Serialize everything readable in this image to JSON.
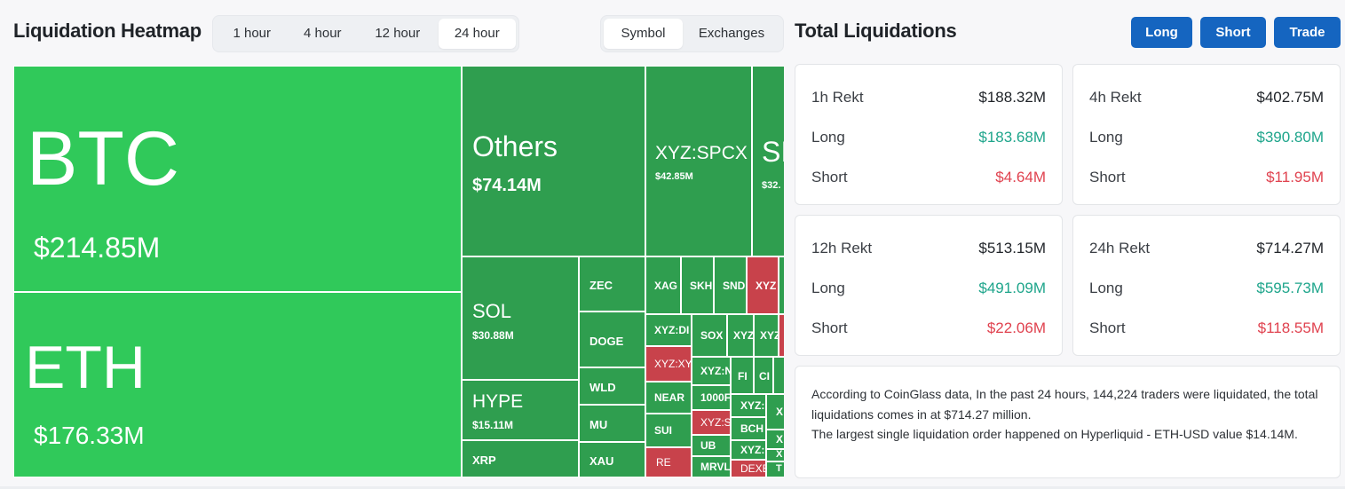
{
  "header": {
    "heatmap_title": "Liquidation Heatmap",
    "time_tabs": [
      "1 hour",
      "4 hour",
      "12 hour",
      "24 hour"
    ],
    "active_time_tab": "24 hour",
    "view_tabs": [
      "Symbol",
      "Exchanges"
    ],
    "active_view_tab": "Symbol",
    "total_title": "Total Liquidations",
    "buttons": {
      "long": "Long",
      "short": "Short",
      "trade": "Trade"
    }
  },
  "heatmap": {
    "tiles": {
      "btc": {
        "symbol": "BTC",
        "value": "$214.85M"
      },
      "eth": {
        "symbol": "ETH",
        "value": "$176.33M"
      },
      "others": {
        "symbol": "Others",
        "value": "$74.14M"
      },
      "spcx": {
        "symbol": "XYZ:SPCX",
        "value": "$42.85M"
      },
      "sl": {
        "symbol": "SI",
        "value": "$32."
      },
      "sol": {
        "symbol": "SOL",
        "value": "$30.88M"
      },
      "hype": {
        "symbol": "HYPE",
        "value": "$15.11M"
      },
      "xrp": {
        "symbol": "XRP"
      },
      "zec": {
        "symbol": "ZEC"
      },
      "doge": {
        "symbol": "DOGE"
      },
      "wld": {
        "symbol": "WLD"
      },
      "mu": {
        "symbol": "MU"
      },
      "xau": {
        "symbol": "XAU"
      },
      "xag": {
        "symbol": "XAG"
      },
      "skh": {
        "symbol": "SKH"
      },
      "snd": {
        "symbol": "SND"
      },
      "xyz1": {
        "symbol": "XYZ"
      },
      "xyzdi": {
        "symbol": "XYZ:DI"
      },
      "sox": {
        "symbol": "SOX"
      },
      "xyz2": {
        "symbol": "XYZ"
      },
      "xyz3": {
        "symbol": "XYZ"
      },
      "xyzxy": {
        "symbol": "XYZ:XY"
      },
      "xyzn": {
        "symbol": "XYZ:N"
      },
      "fi": {
        "symbol": "FI"
      },
      "ci": {
        "symbol": "CI"
      },
      "near": {
        "symbol": "NEAR"
      },
      "k1000": {
        "symbol": "1000F"
      },
      "xyzs": {
        "symbol": "XYZ:S"
      },
      "xyzc": {
        "symbol": "XYZ:"
      },
      "bch": {
        "symbol": "BCH"
      },
      "xa": {
        "symbol": "X"
      },
      "xb": {
        "symbol": "X"
      },
      "sui": {
        "symbol": "SUI"
      },
      "ub": {
        "symbol": "UB"
      },
      "xyzd": {
        "symbol": "XYZ:"
      },
      "xc": {
        "symbol": "X"
      },
      "re": {
        "symbol": "RE"
      },
      "mrvl": {
        "symbol": "MRVL"
      },
      "dexe": {
        "symbol": "DEXE"
      },
      "t": {
        "symbol": "T"
      }
    }
  },
  "stats": {
    "1h": {
      "label": "1h Rekt",
      "total": "$188.32M",
      "long_label": "Long",
      "long": "$183.68M",
      "short_label": "Short",
      "short": "$4.64M"
    },
    "4h": {
      "label": "4h Rekt",
      "total": "$402.75M",
      "long_label": "Long",
      "long": "$390.80M",
      "short_label": "Short",
      "short": "$11.95M"
    },
    "12h": {
      "label": "12h Rekt",
      "total": "$513.15M",
      "long_label": "Long",
      "long": "$491.09M",
      "short_label": "Short",
      "short": "$22.06M"
    },
    "24h": {
      "label": "24h Rekt",
      "total": "$714.27M",
      "long_label": "Long",
      "long": "$595.73M",
      "short_label": "Short",
      "short": "$118.55M"
    }
  },
  "summary": {
    "line1": "According to CoinGlass data, In the past 24 hours, 144,224 traders were liquidated, the total liquidations comes in at $714.27 million.",
    "line2": "The largest single liquidation order happened on Hyperliquid - ETH-USD value $14.14M."
  },
  "colors": {
    "bright_green": "#30c95a",
    "green": "#2f9e4f",
    "red": "#c8424b",
    "accent_blue": "#1565c0",
    "long_text": "#1ea58b",
    "short_text": "#e0424f"
  }
}
